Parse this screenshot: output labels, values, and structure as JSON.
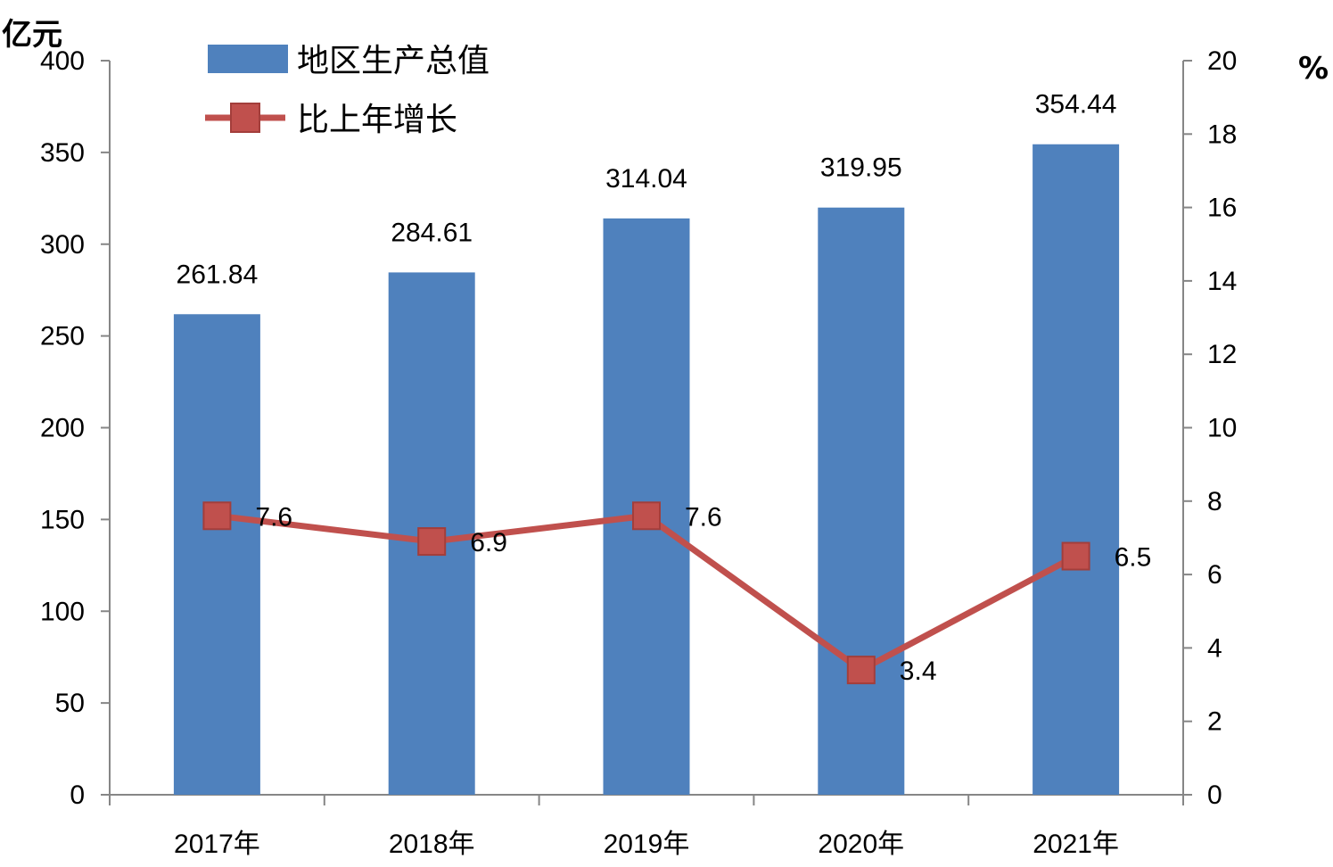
{
  "chart_data": {
    "type": "bar",
    "categories": [
      "2017年",
      "2018年",
      "2019年",
      "2020年",
      "2021年"
    ],
    "series": [
      {
        "name": "地区生产总值",
        "type": "bar",
        "axis": "left",
        "color": "#4F81BD",
        "values": [
          261.84,
          284.61,
          314.04,
          319.95,
          354.44
        ],
        "labels": [
          "261.84",
          "284.61",
          "314.04",
          "319.95",
          "354.44"
        ]
      },
      {
        "name": "比上年增长",
        "type": "line",
        "axis": "right",
        "color": "#C0504D",
        "marker": "square",
        "values": [
          7.6,
          6.9,
          7.6,
          3.4,
          6.5
        ],
        "labels": [
          "7.6",
          "6.9",
          "7.6",
          "3.4",
          "6.5"
        ]
      }
    ],
    "y_left": {
      "unit": "亿元",
      "min": 0,
      "max": 400,
      "ticks": [
        "0",
        "50",
        "100",
        "150",
        "200",
        "250",
        "300",
        "350",
        "400"
      ]
    },
    "y_right": {
      "unit": "%",
      "min": 0,
      "max": 20,
      "ticks": [
        "0",
        "2",
        "4",
        "6",
        "8",
        "10",
        "12",
        "14",
        "16",
        "18",
        "20"
      ]
    },
    "grid": false,
    "legend": "top-left"
  }
}
